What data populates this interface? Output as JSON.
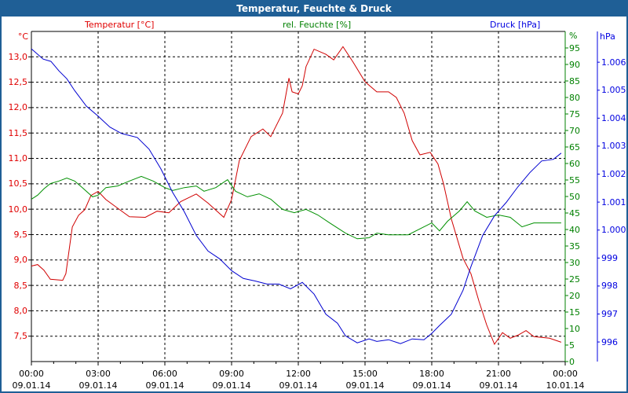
{
  "window": {
    "title": "Temperatur, Feuchte & Druck"
  },
  "chart_data": {
    "type": "line",
    "title": "Temperatur, Feuchte & Druck",
    "grid": true,
    "x_ticks": [
      {
        "time": "00:00",
        "date": "09.01.14"
      },
      {
        "time": "03:00",
        "date": "09.01.14"
      },
      {
        "time": "06:00",
        "date": "09.01.14"
      },
      {
        "time": "09:00",
        "date": "09.01.14"
      },
      {
        "time": "12:00",
        "date": "09.01.14"
      },
      {
        "time": "15:00",
        "date": "09.01.14"
      },
      {
        "time": "18:00",
        "date": "09.01.14"
      },
      {
        "time": "21:00",
        "date": "09.01.14"
      },
      {
        "time": "00:00",
        "date": "10.01.14"
      }
    ],
    "xlim_hours": [
      0,
      24
    ],
    "axes": {
      "temp": {
        "label": "Temperatur [°C]",
        "unit": "°C",
        "color": "#e00000",
        "ylim": [
          7.0,
          13.5
        ],
        "ticks": [
          "7,5",
          "8,0",
          "8,5",
          "9,0",
          "9,5",
          "10,0",
          "10,5",
          "11,0",
          "11,5",
          "12,0",
          "12,5",
          "13,0"
        ],
        "tick_values": [
          7.5,
          8,
          8.5,
          9,
          9.5,
          10,
          10.5,
          11,
          11.5,
          12,
          12.5,
          13
        ]
      },
      "hum": {
        "label": "rel. Feuchte [%]",
        "unit": "%",
        "color": "#008000",
        "ylim": [
          0,
          100
        ],
        "ticks": [
          "0",
          "5",
          "10",
          "15",
          "20",
          "25",
          "30",
          "35",
          "40",
          "45",
          "50",
          "55",
          "60",
          "65",
          "70",
          "75",
          "80",
          "85",
          "90",
          "95"
        ],
        "tick_values": [
          0,
          5,
          10,
          15,
          20,
          25,
          30,
          35,
          40,
          45,
          50,
          55,
          60,
          65,
          70,
          75,
          80,
          85,
          90,
          95
        ]
      },
      "press": {
        "label": "Druck [hPa]",
        "unit": "hPa",
        "color": "#0000e0",
        "ylim": [
          995.3,
          1007.1
        ],
        "ticks": [
          "996",
          "997",
          "998",
          "999",
          "1.000",
          "1.001",
          "1.002",
          "1.003",
          "1.004",
          "1.005",
          "1.006"
        ],
        "tick_values": [
          996,
          997,
          998,
          999,
          1000,
          1001,
          1002,
          1003,
          1004,
          1005,
          1006
        ]
      }
    },
    "series": [
      {
        "name": "Temperatur [°C]",
        "axis": "temp",
        "color": "#d00000",
        "points": [
          [
            0,
            8.88
          ],
          [
            0.28,
            8.91
          ],
          [
            0.56,
            8.8
          ],
          [
            0.85,
            8.62
          ],
          [
            1.41,
            8.6
          ],
          [
            1.55,
            8.73
          ],
          [
            1.84,
            9.65
          ],
          [
            2.12,
            9.88
          ],
          [
            2.4,
            9.99
          ],
          [
            2.68,
            10.27
          ],
          [
            3,
            10.35
          ],
          [
            3.35,
            10.19
          ],
          [
            3.88,
            10.02
          ],
          [
            4.41,
            9.85
          ],
          [
            5.12,
            9.84
          ],
          [
            5.65,
            9.96
          ],
          [
            6.18,
            9.93
          ],
          [
            6.71,
            10.15
          ],
          [
            7.41,
            10.3
          ],
          [
            7.94,
            10.12
          ],
          [
            8.65,
            9.84
          ],
          [
            9,
            10.19
          ],
          [
            9.35,
            10.96
          ],
          [
            9.88,
            11.43
          ],
          [
            10.41,
            11.58
          ],
          [
            10.76,
            11.43
          ],
          [
            11.29,
            11.89
          ],
          [
            11.58,
            12.58
          ],
          [
            11.72,
            12.31
          ],
          [
            12,
            12.27
          ],
          [
            12.18,
            12.43
          ],
          [
            12.35,
            12.81
          ],
          [
            12.71,
            13.15
          ],
          [
            13.24,
            13.05
          ],
          [
            13.59,
            12.94
          ],
          [
            14.01,
            13.2
          ],
          [
            14.47,
            12.89
          ],
          [
            15,
            12.51
          ],
          [
            15.53,
            12.31
          ],
          [
            16.06,
            12.31
          ],
          [
            16.41,
            12.2
          ],
          [
            16.76,
            11.89
          ],
          [
            17.12,
            11.35
          ],
          [
            17.47,
            11.07
          ],
          [
            17.93,
            11.12
          ],
          [
            18.28,
            10.89
          ],
          [
            18.53,
            10.5
          ],
          [
            18.88,
            9.81
          ],
          [
            19.41,
            9.03
          ],
          [
            19.76,
            8.73
          ],
          [
            20.12,
            8.19
          ],
          [
            20.47,
            7.72
          ],
          [
            20.82,
            7.34
          ],
          [
            21.18,
            7.57
          ],
          [
            21.53,
            7.46
          ],
          [
            21.88,
            7.52
          ],
          [
            22.24,
            7.61
          ],
          [
            22.59,
            7.49
          ],
          [
            23.29,
            7.46
          ],
          [
            23.82,
            7.38
          ]
        ]
      },
      {
        "name": "rel. Feuchte [%]",
        "axis": "hum",
        "color": "#009000",
        "points": [
          [
            0,
            49.2
          ],
          [
            0.28,
            50.4
          ],
          [
            0.56,
            52.3
          ],
          [
            0.85,
            53.9
          ],
          [
            1.24,
            54.7
          ],
          [
            1.59,
            55.6
          ],
          [
            1.94,
            54.7
          ],
          [
            2.29,
            52.7
          ],
          [
            2.75,
            49.9
          ],
          [
            3,
            50.4
          ],
          [
            3.35,
            52.7
          ],
          [
            3.88,
            53.2
          ],
          [
            4.41,
            54.7
          ],
          [
            4.94,
            56.1
          ],
          [
            5.47,
            54.7
          ],
          [
            6,
            52.7
          ],
          [
            6.35,
            51.8
          ],
          [
            6.88,
            52.7
          ],
          [
            7.41,
            53.2
          ],
          [
            7.76,
            51.6
          ],
          [
            8.29,
            52.7
          ],
          [
            8.82,
            55.1
          ],
          [
            9.18,
            51.6
          ],
          [
            9.71,
            49.9
          ],
          [
            10.24,
            50.8
          ],
          [
            10.76,
            49.2
          ],
          [
            11.29,
            46.1
          ],
          [
            11.82,
            45.1
          ],
          [
            12.35,
            46.1
          ],
          [
            12.88,
            44.4
          ],
          [
            13.41,
            42.0
          ],
          [
            14.12,
            38.9
          ],
          [
            14.65,
            37.2
          ],
          [
            15.18,
            37.5
          ],
          [
            15.53,
            38.9
          ],
          [
            16.06,
            38.4
          ],
          [
            16.94,
            38.4
          ],
          [
            17.65,
            40.8
          ],
          [
            18,
            42.0
          ],
          [
            18.35,
            39.6
          ],
          [
            18.71,
            42.5
          ],
          [
            19.24,
            45.6
          ],
          [
            19.59,
            48.4
          ],
          [
            19.94,
            45.6
          ],
          [
            20.47,
            43.7
          ],
          [
            21,
            44.4
          ],
          [
            21.53,
            43.7
          ],
          [
            22.06,
            40.8
          ],
          [
            22.59,
            42.0
          ],
          [
            23.29,
            42.0
          ],
          [
            23.82,
            42.0
          ]
        ]
      },
      {
        "name": "Druck [hPa]",
        "axis": "press",
        "color": "#0000d0",
        "points": [
          [
            0,
            1006.48
          ],
          [
            0.53,
            1006.11
          ],
          [
            0.88,
            1006.03
          ],
          [
            1.24,
            1005.69
          ],
          [
            1.59,
            1005.41
          ],
          [
            1.94,
            1004.99
          ],
          [
            2.47,
            1004.43
          ],
          [
            3,
            1004.07
          ],
          [
            3.53,
            1003.68
          ],
          [
            4.06,
            1003.45
          ],
          [
            4.76,
            1003.31
          ],
          [
            5.29,
            1002.89
          ],
          [
            5.82,
            1002.19
          ],
          [
            6.35,
            1001.35
          ],
          [
            6.88,
            1000.65
          ],
          [
            7.41,
            999.81
          ],
          [
            7.94,
            999.25
          ],
          [
            8.47,
            998.97
          ],
          [
            9,
            998.55
          ],
          [
            9.53,
            998.27
          ],
          [
            10.06,
            998.18
          ],
          [
            10.59,
            998.07
          ],
          [
            11.12,
            998.07
          ],
          [
            11.65,
            997.9
          ],
          [
            12.18,
            998.13
          ],
          [
            12.71,
            997.71
          ],
          [
            13.24,
            996.99
          ],
          [
            13.76,
            996.67
          ],
          [
            14.12,
            996.22
          ],
          [
            14.65,
            995.97
          ],
          [
            15.18,
            996.11
          ],
          [
            15.53,
            996.02
          ],
          [
            16.06,
            996.08
          ],
          [
            16.59,
            995.94
          ],
          [
            17.12,
            996.11
          ],
          [
            17.65,
            996.08
          ],
          [
            18,
            996.31
          ],
          [
            18.35,
            996.59
          ],
          [
            18.88,
            996.99
          ],
          [
            19.41,
            997.85
          ],
          [
            19.76,
            998.69
          ],
          [
            20.29,
            999.81
          ],
          [
            20.82,
            1000.51
          ],
          [
            21.35,
            1000.99
          ],
          [
            21.88,
            1001.55
          ],
          [
            22.41,
            1002.05
          ],
          [
            22.94,
            1002.47
          ],
          [
            23.47,
            1002.53
          ],
          [
            23.82,
            1002.75
          ]
        ]
      }
    ]
  }
}
